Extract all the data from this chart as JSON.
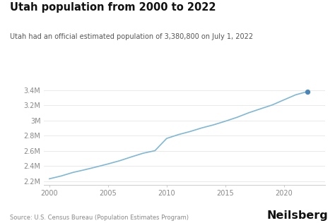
{
  "title": "Utah population from 2000 to 2022",
  "subtitle": "Utah had an official estimated population of 3,380,800 on July 1, 2022",
  "source": "Source: U.S. Census Bureau (Population Estimates Program)",
  "brand": "Neilsberg",
  "line_color": "#7db8d8",
  "dot_color": "#4a86b8",
  "background_color": "#ffffff",
  "years": [
    2000,
    2001,
    2002,
    2003,
    2004,
    2005,
    2006,
    2007,
    2008,
    2009,
    2010,
    2011,
    2012,
    2013,
    2014,
    2015,
    2016,
    2017,
    2018,
    2019,
    2020,
    2021,
    2022
  ],
  "population": [
    2233169,
    2269789,
    2316256,
    2351467,
    2389039,
    2428635,
    2470954,
    2521578,
    2569697,
    2602805,
    2763885,
    2814384,
    2855287,
    2902663,
    2942902,
    2990632,
    3041868,
    3101833,
    3153550,
    3204503,
    3271616,
    3337975,
    3380800
  ],
  "xlim": [
    1999.5,
    2023.5
  ],
  "ylim": [
    2150000,
    3500000
  ],
  "yticks": [
    2200000,
    2400000,
    2600000,
    2800000,
    3000000,
    3200000,
    3400000
  ],
  "ytick_labels": [
    "2.2M",
    "2.4M",
    "2.6M",
    "2.8M",
    "3M",
    "3.2M",
    "3.4M"
  ],
  "xticks": [
    2000,
    2005,
    2010,
    2015,
    2020
  ],
  "title_fontsize": 10.5,
  "subtitle_fontsize": 7.0,
  "tick_fontsize": 7.0,
  "source_fontsize": 6.0,
  "brand_fontsize": 11.5,
  "title_color": "#111111",
  "subtitle_color": "#555555",
  "tick_color": "#888888",
  "source_color": "#888888",
  "brand_color": "#111111",
  "grid_color": "#e0e0e0",
  "spine_color": "#cccccc"
}
